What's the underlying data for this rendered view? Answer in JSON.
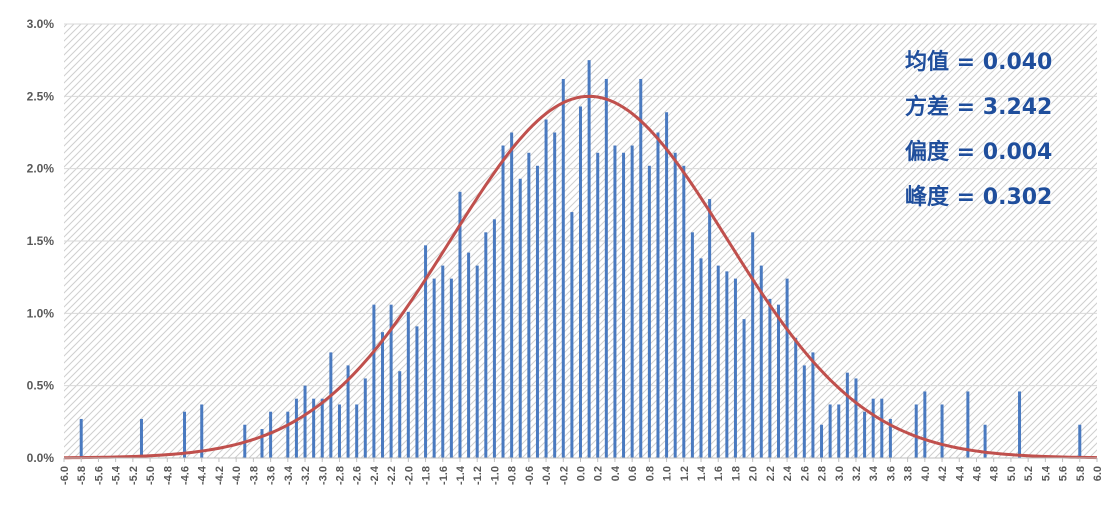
{
  "chart_data": {
    "type": "bar",
    "title": "",
    "xlabel": "",
    "ylabel": "",
    "xlim": [
      -6.0,
      6.0
    ],
    "ylim": [
      0,
      3.0
    ],
    "y_unit": "%",
    "grid": true,
    "y_tick_labels": [
      "0.0%",
      "0.5%",
      "1.0%",
      "1.5%",
      "2.0%",
      "2.5%",
      "3.0%"
    ],
    "x_tick_labels": [
      "-6.0",
      "-5.8",
      "-5.6",
      "-5.4",
      "-5.2",
      "-5.0",
      "-4.8",
      "-4.6",
      "-4.4",
      "-4.2",
      "-4.0",
      "-3.8",
      "-3.6",
      "-3.4",
      "-3.2",
      "-3.0",
      "-2.8",
      "-2.6",
      "-2.4",
      "-2.2",
      "-2.0",
      "-1.8",
      "-1.6",
      "-1.4",
      "-1.2",
      "-1.0",
      "-0.8",
      "-0.6",
      "-0.4",
      "-0.2",
      "0.0",
      "0.2",
      "0.4",
      "0.6",
      "0.8",
      "1.0",
      "1.2",
      "1.4",
      "1.6",
      "1.8",
      "2.0",
      "2.2",
      "2.4",
      "2.6",
      "2.8",
      "3.0",
      "3.2",
      "3.4",
      "3.6",
      "3.8",
      "4.0",
      "4.2",
      "4.4",
      "4.6",
      "4.8",
      "5.0",
      "5.2",
      "5.4",
      "5.6",
      "5.8",
      "6.0"
    ],
    "bars": {
      "color": "#4a7ac0",
      "x": [
        -5.8,
        -5.1,
        -4.6,
        -4.4,
        -3.9,
        -3.7,
        -3.6,
        -3.4,
        -3.3,
        -3.2,
        -3.1,
        -3.0,
        -2.9,
        -2.8,
        -2.7,
        -2.6,
        -2.5,
        -2.4,
        -2.3,
        -2.2,
        -2.1,
        -2.0,
        -1.9,
        -1.8,
        -1.7,
        -1.6,
        -1.5,
        -1.4,
        -1.3,
        -1.2,
        -1.1,
        -1.0,
        -0.9,
        -0.8,
        -0.7,
        -0.6,
        -0.5,
        -0.4,
        -0.3,
        -0.2,
        -0.1,
        0.0,
        0.1,
        0.2,
        0.3,
        0.4,
        0.5,
        0.6,
        0.7,
        0.8,
        0.9,
        1.0,
        1.1,
        1.2,
        1.3,
        1.4,
        1.5,
        1.6,
        1.7,
        1.8,
        1.9,
        2.0,
        2.1,
        2.2,
        2.3,
        2.4,
        2.5,
        2.6,
        2.7,
        2.8,
        2.9,
        3.0,
        3.1,
        3.2,
        3.3,
        3.4,
        3.5,
        3.6,
        3.9,
        4.0,
        4.2,
        4.5,
        4.7,
        5.1,
        5.8
      ],
      "values": [
        0.27,
        0.27,
        0.32,
        0.37,
        0.23,
        0.2,
        0.32,
        0.32,
        0.41,
        0.5,
        0.41,
        0.41,
        0.73,
        0.37,
        0.64,
        0.37,
        0.55,
        1.06,
        0.87,
        1.06,
        0.6,
        1.01,
        0.91,
        1.47,
        1.24,
        1.33,
        1.24,
        1.84,
        1.42,
        1.33,
        1.56,
        1.65,
        2.16,
        2.25,
        1.93,
        2.11,
        2.02,
        2.34,
        2.25,
        2.62,
        1.7,
        2.43,
        2.75,
        2.11,
        2.62,
        2.16,
        2.11,
        2.16,
        2.62,
        2.02,
        2.25,
        2.39,
        2.11,
        2.02,
        1.56,
        1.38,
        1.79,
        1.33,
        1.29,
        1.24,
        0.96,
        1.56,
        1.33,
        1.1,
        1.06,
        1.24,
        0.83,
        0.64,
        0.73,
        0.23,
        0.37,
        0.37,
        0.59,
        0.55,
        0.32,
        0.41,
        0.41,
        0.27,
        0.37,
        0.46,
        0.37,
        0.46,
        0.23,
        0.46,
        0.23
      ]
    },
    "fit_curve": {
      "type": "normal",
      "color": "#c0504d",
      "mean": 0.1,
      "peak": 2.5,
      "sd": 1.6
    },
    "annotations": [
      {
        "label": "均值",
        "value": "0.040"
      },
      {
        "label": "方差",
        "value": "3.242"
      },
      {
        "label": "偏度",
        "value": "0.004"
      },
      {
        "label": "峰度",
        "value": "0.302"
      }
    ]
  }
}
